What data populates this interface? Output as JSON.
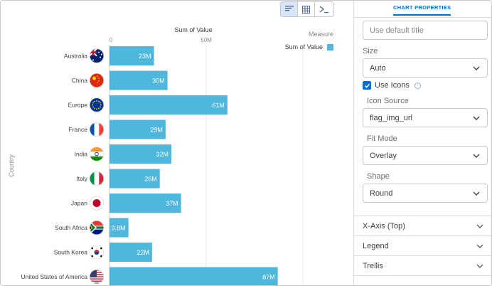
{
  "toolbar": {
    "buttons": [
      {
        "name": "chart-icon",
        "active": true
      },
      {
        "name": "table-icon",
        "active": false
      },
      {
        "name": "query-icon",
        "active": false
      }
    ]
  },
  "chart_data": {
    "type": "bar",
    "orientation": "horizontal",
    "title": "Sum of Value",
    "ylabel": "Country",
    "xlim": [
      0,
      87
    ],
    "x_ticks": [
      {
        "value": 0,
        "label": "0"
      },
      {
        "value": 50,
        "label": "50M"
      }
    ],
    "categories": [
      "Australia",
      "China",
      "Europe",
      "France",
      "India",
      "Italy",
      "Japan",
      "South Africa",
      "South Korea",
      "United States of America"
    ],
    "values": [
      23,
      30,
      61,
      29,
      32,
      26,
      37,
      9.8,
      22,
      87
    ],
    "value_labels": [
      "23M",
      "30M",
      "61M",
      "29M",
      "32M",
      "26M",
      "37M",
      "9.8M",
      "22M",
      "87M"
    ],
    "flags": [
      "australia-flag-icon",
      "china-flag-icon",
      "europe-flag-icon",
      "france-flag-icon",
      "india-flag-icon",
      "italy-flag-icon",
      "japan-flag-icon",
      "south-africa-flag-icon",
      "south-korea-flag-icon",
      "usa-flag-icon"
    ],
    "bar_color": "#4fb6dc",
    "legend": {
      "title": "Measure",
      "entries": [
        "Sum of Value"
      ],
      "placement": "top-right"
    }
  },
  "panel": {
    "tab_label": "CHART PROPERTIES",
    "title_placeholder": "Use default title",
    "size_label": "Size",
    "size_value": "Auto",
    "use_icons_label": "Use Icons",
    "use_icons_checked": true,
    "icon_source_label": "Icon Source",
    "icon_source_value": "flag_img_url",
    "fit_mode_label": "Fit Mode",
    "fit_mode_value": "Overlay",
    "shape_label": "Shape",
    "shape_value": "Round",
    "sections": [
      "X-Axis (Top)",
      "Legend",
      "Trellis"
    ]
  },
  "colors": {
    "accent": "#0070d2",
    "bar": "#4fb6dc"
  }
}
